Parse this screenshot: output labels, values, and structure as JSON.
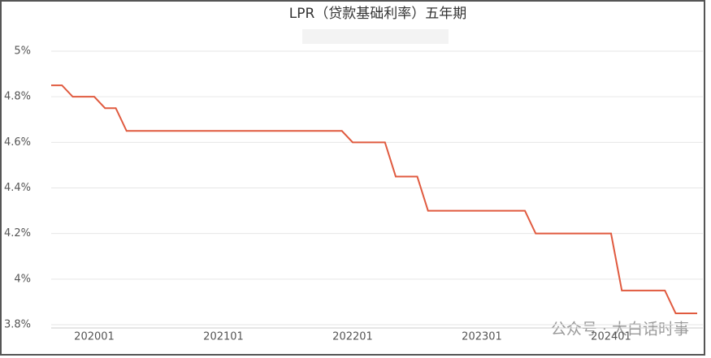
{
  "chart_data": {
    "type": "line",
    "title": "LPR（贷款基础利率）五年期",
    "watermark": "公众号 · 大白话时事",
    "categories": [
      null,
      null,
      null,
      null,
      "202001",
      null,
      null,
      null,
      null,
      null,
      null,
      null,
      null,
      null,
      null,
      null,
      "202101",
      null,
      null,
      null,
      null,
      null,
      null,
      null,
      null,
      null,
      null,
      null,
      "202201",
      null,
      null,
      null,
      null,
      null,
      null,
      null,
      null,
      null,
      null,
      null,
      "202301",
      null,
      null,
      null,
      null,
      null,
      null,
      null,
      null,
      null,
      null,
      null,
      "202401",
      null,
      null,
      null,
      null,
      null,
      null,
      null,
      null
    ],
    "series": [
      {
        "name": "LPR",
        "color": "#e05a3f",
        "values": [
          4.85,
          4.85,
          4.8,
          4.8,
          4.8,
          4.75,
          4.75,
          4.65,
          4.65,
          4.65,
          4.65,
          4.65,
          4.65,
          4.65,
          4.65,
          4.65,
          4.65,
          4.65,
          4.65,
          4.65,
          4.65,
          4.65,
          4.65,
          4.65,
          4.65,
          4.65,
          4.65,
          4.65,
          4.6,
          4.6,
          4.6,
          4.6,
          4.45,
          4.45,
          4.45,
          4.3,
          4.3,
          4.3,
          4.3,
          4.3,
          4.3,
          4.3,
          4.3,
          4.3,
          4.3,
          4.2,
          4.2,
          4.2,
          4.2,
          4.2,
          4.2,
          4.2,
          4.2,
          3.95,
          3.95,
          3.95,
          3.95,
          3.95,
          3.85,
          3.85,
          3.85
        ]
      }
    ],
    "ylim": [
      3.8,
      5.0
    ],
    "yticks": [
      {
        "value": 3.8,
        "label": "3.8%"
      },
      {
        "value": 4,
        "label": "4%"
      },
      {
        "value": 4.2,
        "label": "4.2%"
      },
      {
        "value": 4.4,
        "label": "4.4%"
      },
      {
        "value": 4.6,
        "label": "4.6%"
      },
      {
        "value": 4.8,
        "label": "4.8%"
      },
      {
        "value": 5,
        "label": "5%"
      }
    ],
    "grid": true
  }
}
